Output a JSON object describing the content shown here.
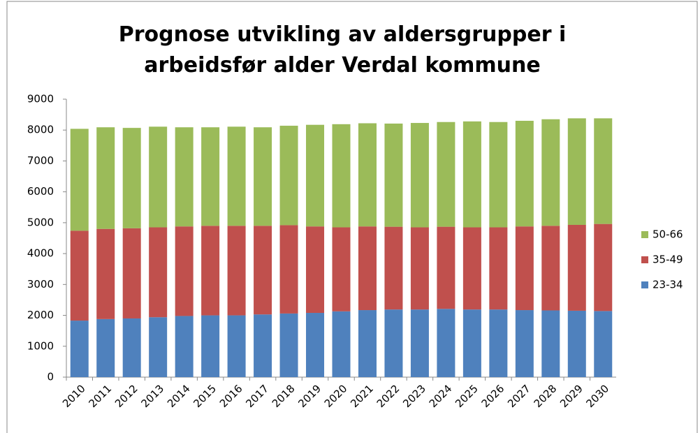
{
  "chart_data": {
    "type": "stacked_bar",
    "title": "Prognose utvikling av aldersgrupper i arbeidsfør alder Verdal kommune",
    "categories": [
      "2010",
      "2011",
      "2012",
      "2013",
      "2014",
      "2015",
      "2016",
      "2017",
      "2018",
      "2019",
      "2020",
      "2021",
      "2022",
      "2023",
      "2024",
      "2025",
      "2026",
      "2027",
      "2028",
      "2029",
      "2030"
    ],
    "series": [
      {
        "name": "23-34",
        "color": "#4f81bd",
        "values": [
          1830,
          1880,
          1900,
          1940,
          1980,
          2000,
          2000,
          2030,
          2060,
          2080,
          2130,
          2170,
          2190,
          2190,
          2210,
          2190,
          2190,
          2170,
          2160,
          2150,
          2140
        ]
      },
      {
        "name": "35-49",
        "color": "#c0504d",
        "values": [
          2910,
          2920,
          2920,
          2910,
          2900,
          2900,
          2900,
          2870,
          2860,
          2800,
          2720,
          2710,
          2680,
          2660,
          2660,
          2660,
          2660,
          2710,
          2740,
          2780,
          2820
        ]
      },
      {
        "name": "50-66",
        "color": "#9bbb59",
        "values": [
          3300,
          3290,
          3250,
          3260,
          3210,
          3190,
          3210,
          3190,
          3220,
          3290,
          3340,
          3340,
          3340,
          3380,
          3390,
          3430,
          3410,
          3420,
          3450,
          3450,
          3420
        ]
      }
    ],
    "ylim": [
      0,
      9000
    ],
    "yticks": [
      0,
      1000,
      2000,
      3000,
      4000,
      5000,
      6000,
      7000,
      8000,
      9000
    ],
    "grid": false,
    "legend": "right"
  }
}
